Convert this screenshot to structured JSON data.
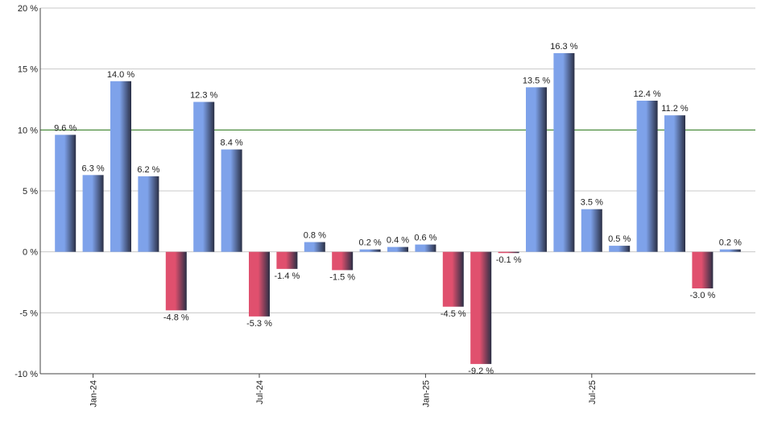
{
  "chart_data": {
    "type": "bar",
    "categories": [
      null,
      "Jan-24",
      null,
      null,
      null,
      null,
      null,
      "Jul-24",
      null,
      null,
      null,
      null,
      null,
      "Jan-25",
      null,
      null,
      null,
      null,
      null,
      "Jul-25",
      null,
      null,
      null,
      null,
      null
    ],
    "values": [
      9.6,
      6.3,
      14.0,
      6.2,
      -4.8,
      12.3,
      8.4,
      -5.3,
      -1.4,
      0.8,
      -1.5,
      0.2,
      0.4,
      0.6,
      -4.5,
      -9.2,
      -0.1,
      13.5,
      16.3,
      3.5,
      0.5,
      12.4,
      11.2,
      -3.0,
      0.2
    ],
    "value_labels": [
      "9.6 %",
      "6.3 %",
      "14.0 %",
      "6.2 %",
      "-4.8 %",
      "12.3 %",
      "8.4 %",
      "-5.3 %",
      "-1.4 %",
      "0.8 %",
      "-1.5 %",
      "0.2 %",
      "0.4 %",
      "0.6 %",
      "-4.5 %",
      "-9.2 %",
      "-0.1 %",
      "13.5 %",
      "16.3 %",
      "3.5 %",
      "0.5 %",
      "12.4 %",
      "11.2 %",
      "-3.0 %",
      "0.2 %"
    ],
    "positive_color": "#7ea2ea",
    "negative_color": "#e0506e",
    "reference_line": 10,
    "reference_color": "#2e7d1e",
    "ylim": [
      -10,
      20
    ],
    "yticks": [
      {
        "value": -10,
        "label": "-10 %"
      },
      {
        "value": -5,
        "label": "-5 %"
      },
      {
        "value": 0,
        "label": "0 %"
      },
      {
        "value": 5,
        "label": "5 %"
      },
      {
        "value": 10,
        "label": "10 %"
      },
      {
        "value": 15,
        "label": "15 %"
      },
      {
        "value": 20,
        "label": "20 %"
      }
    ],
    "grid": true
  }
}
